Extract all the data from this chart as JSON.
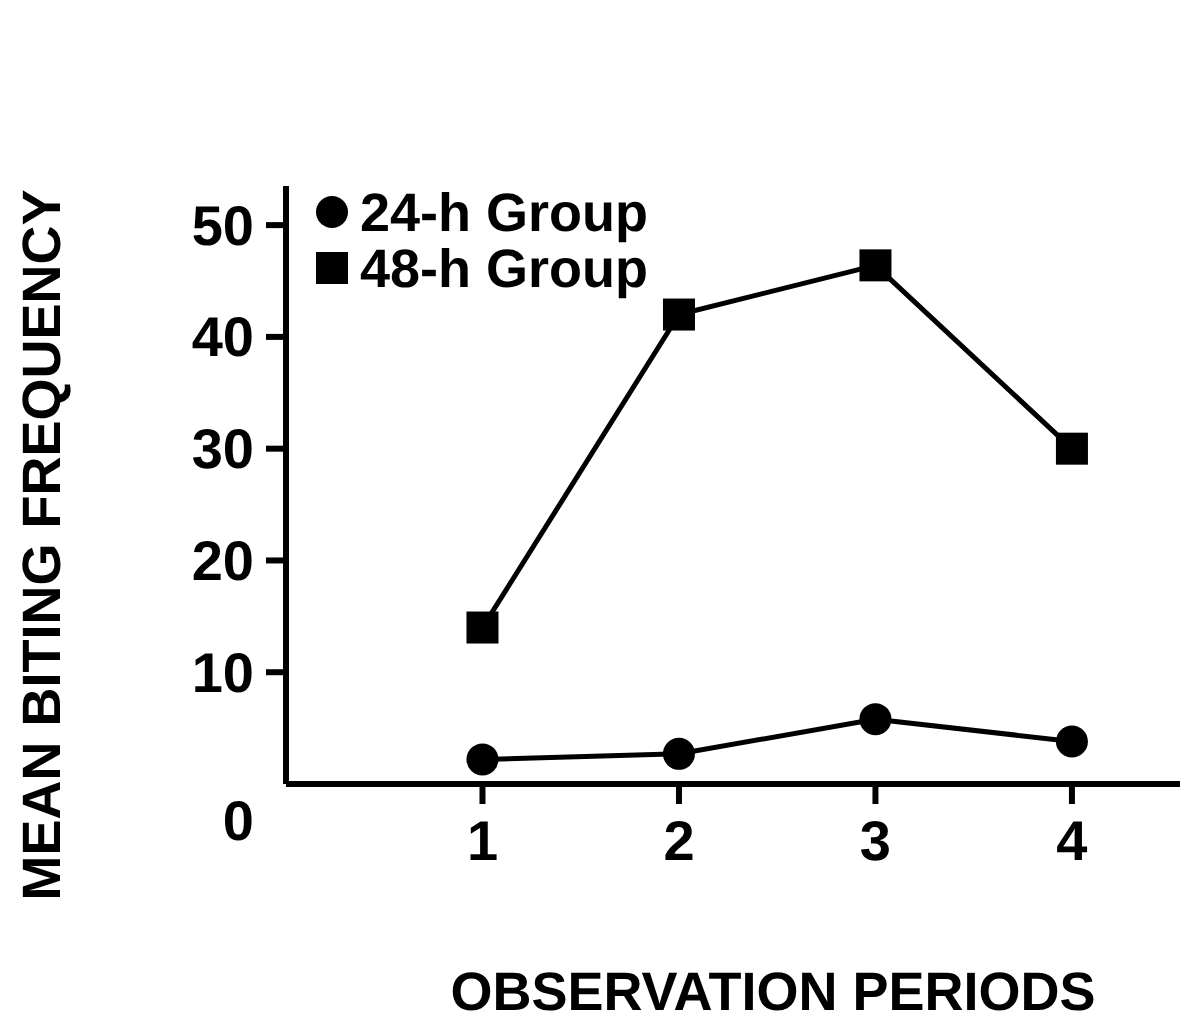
{
  "chart_data": {
    "type": "line",
    "xlabel": "OBSERVATION PERIODS",
    "ylabel": "MEAN BITING FREQUENCY",
    "x": [
      1,
      2,
      3,
      4
    ],
    "xlim": [
      0,
      4.55
    ],
    "xticks": [
      1,
      2,
      3,
      4
    ],
    "ylim": [
      0,
      53.5
    ],
    "yticks": [
      0,
      10,
      20,
      30,
      40,
      50
    ],
    "series": [
      {
        "name": "24-h Group",
        "color": "#000000",
        "marker": "circle",
        "values": [
          2.2,
          2.7,
          5.8,
          3.8
        ]
      },
      {
        "name": "48-h Group",
        "color": "#000000",
        "marker": "square",
        "values": [
          14,
          42,
          46.4,
          30
        ]
      }
    ],
    "legend": "top left",
    "grid": false,
    "line_style": "solid"
  }
}
